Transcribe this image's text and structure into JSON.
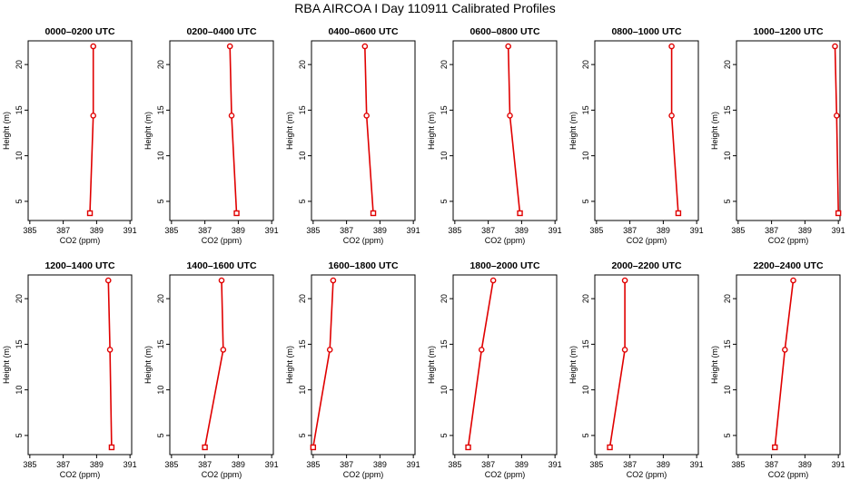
{
  "title": "RBA AIRCOA I  Day 110911  Calibrated Profiles",
  "chart_data": {
    "type": "line",
    "layout": {
      "rows": 2,
      "cols": 6
    },
    "xlabel": "CO2 (ppm)",
    "ylabel": "Height (m)",
    "xlim": [
      384.9,
      391.1
    ],
    "ylim": [
      2.9,
      22.6
    ],
    "xticks": [
      385,
      387,
      389,
      391
    ],
    "yticks": [
      5,
      10,
      15,
      20
    ],
    "series_color": "#e00000",
    "heights": [
      3.7,
      14.4,
      22.0
    ],
    "panels": [
      {
        "title": "0000–0200 UTC",
        "co2": [
          388.6,
          388.8,
          388.8
        ]
      },
      {
        "title": "0200–0400 UTC",
        "co2": [
          388.9,
          388.6,
          388.5
        ]
      },
      {
        "title": "0400–0600 UTC",
        "co2": [
          388.6,
          388.2,
          388.1
        ]
      },
      {
        "title": "0600–0800 UTC",
        "co2": [
          388.9,
          388.3,
          388.2
        ]
      },
      {
        "title": "0800–1000 UTC",
        "co2": [
          389.9,
          389.5,
          389.5
        ]
      },
      {
        "title": "1000–1200 UTC",
        "co2": [
          391.0,
          390.9,
          390.8
        ]
      },
      {
        "title": "1200–1400 UTC",
        "co2": [
          389.9,
          389.8,
          389.7
        ]
      },
      {
        "title": "1400–1600 UTC",
        "co2": [
          387.0,
          388.1,
          388.0
        ]
      },
      {
        "title": "1600–1800 UTC",
        "co2": [
          385.0,
          386.0,
          386.2
        ]
      },
      {
        "title": "1800–2000 UTC",
        "co2": [
          385.8,
          386.6,
          387.3
        ]
      },
      {
        "title": "2000–2200 UTC",
        "co2": [
          385.8,
          386.7,
          386.7
        ]
      },
      {
        "title": "2200–2400 UTC",
        "co2": [
          387.2,
          387.8,
          388.3
        ]
      }
    ]
  }
}
